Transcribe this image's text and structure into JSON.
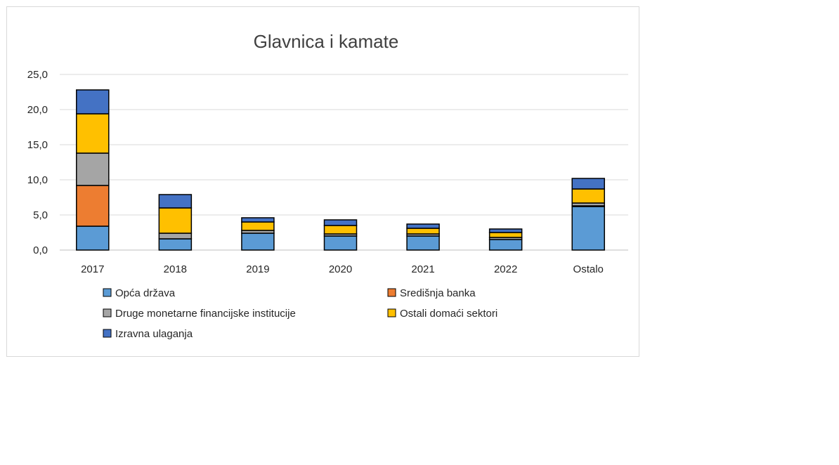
{
  "chart_data": {
    "type": "bar",
    "stacked": true,
    "title": "Glavnica i kamate",
    "xlabel": "",
    "ylabel": "",
    "categories": [
      "2017",
      "2018",
      "2019",
      "2020",
      "2021",
      "2022",
      "Ostalo"
    ],
    "ylim": [
      0,
      25
    ],
    "yticks": [
      "0,0",
      "5,0",
      "10,0",
      "15,0",
      "20,0",
      "25,0"
    ],
    "grid": true,
    "legend_position": "bottom",
    "series": [
      {
        "name": "Opća država",
        "color": "#5b9bd5",
        "values": [
          3.4,
          1.6,
          2.4,
          2.0,
          2.0,
          1.5,
          6.2
        ]
      },
      {
        "name": "Središnja banka",
        "color": "#ed7d31",
        "values": [
          5.8,
          0.0,
          0.0,
          0.0,
          0.0,
          0.0,
          0.1
        ]
      },
      {
        "name": "Druge monetarne financijske institucije",
        "color": "#a5a5a5",
        "values": [
          4.6,
          0.8,
          0.4,
          0.3,
          0.3,
          0.3,
          0.4
        ]
      },
      {
        "name": "Ostali domaći sektori",
        "color": "#ffc000",
        "values": [
          5.6,
          3.6,
          1.2,
          1.2,
          0.8,
          0.7,
          2.0
        ]
      },
      {
        "name": "Izravna ulaganja",
        "color": "#4472c4",
        "values": [
          3.4,
          1.9,
          0.6,
          0.8,
          0.6,
          0.5,
          1.5
        ]
      }
    ]
  }
}
